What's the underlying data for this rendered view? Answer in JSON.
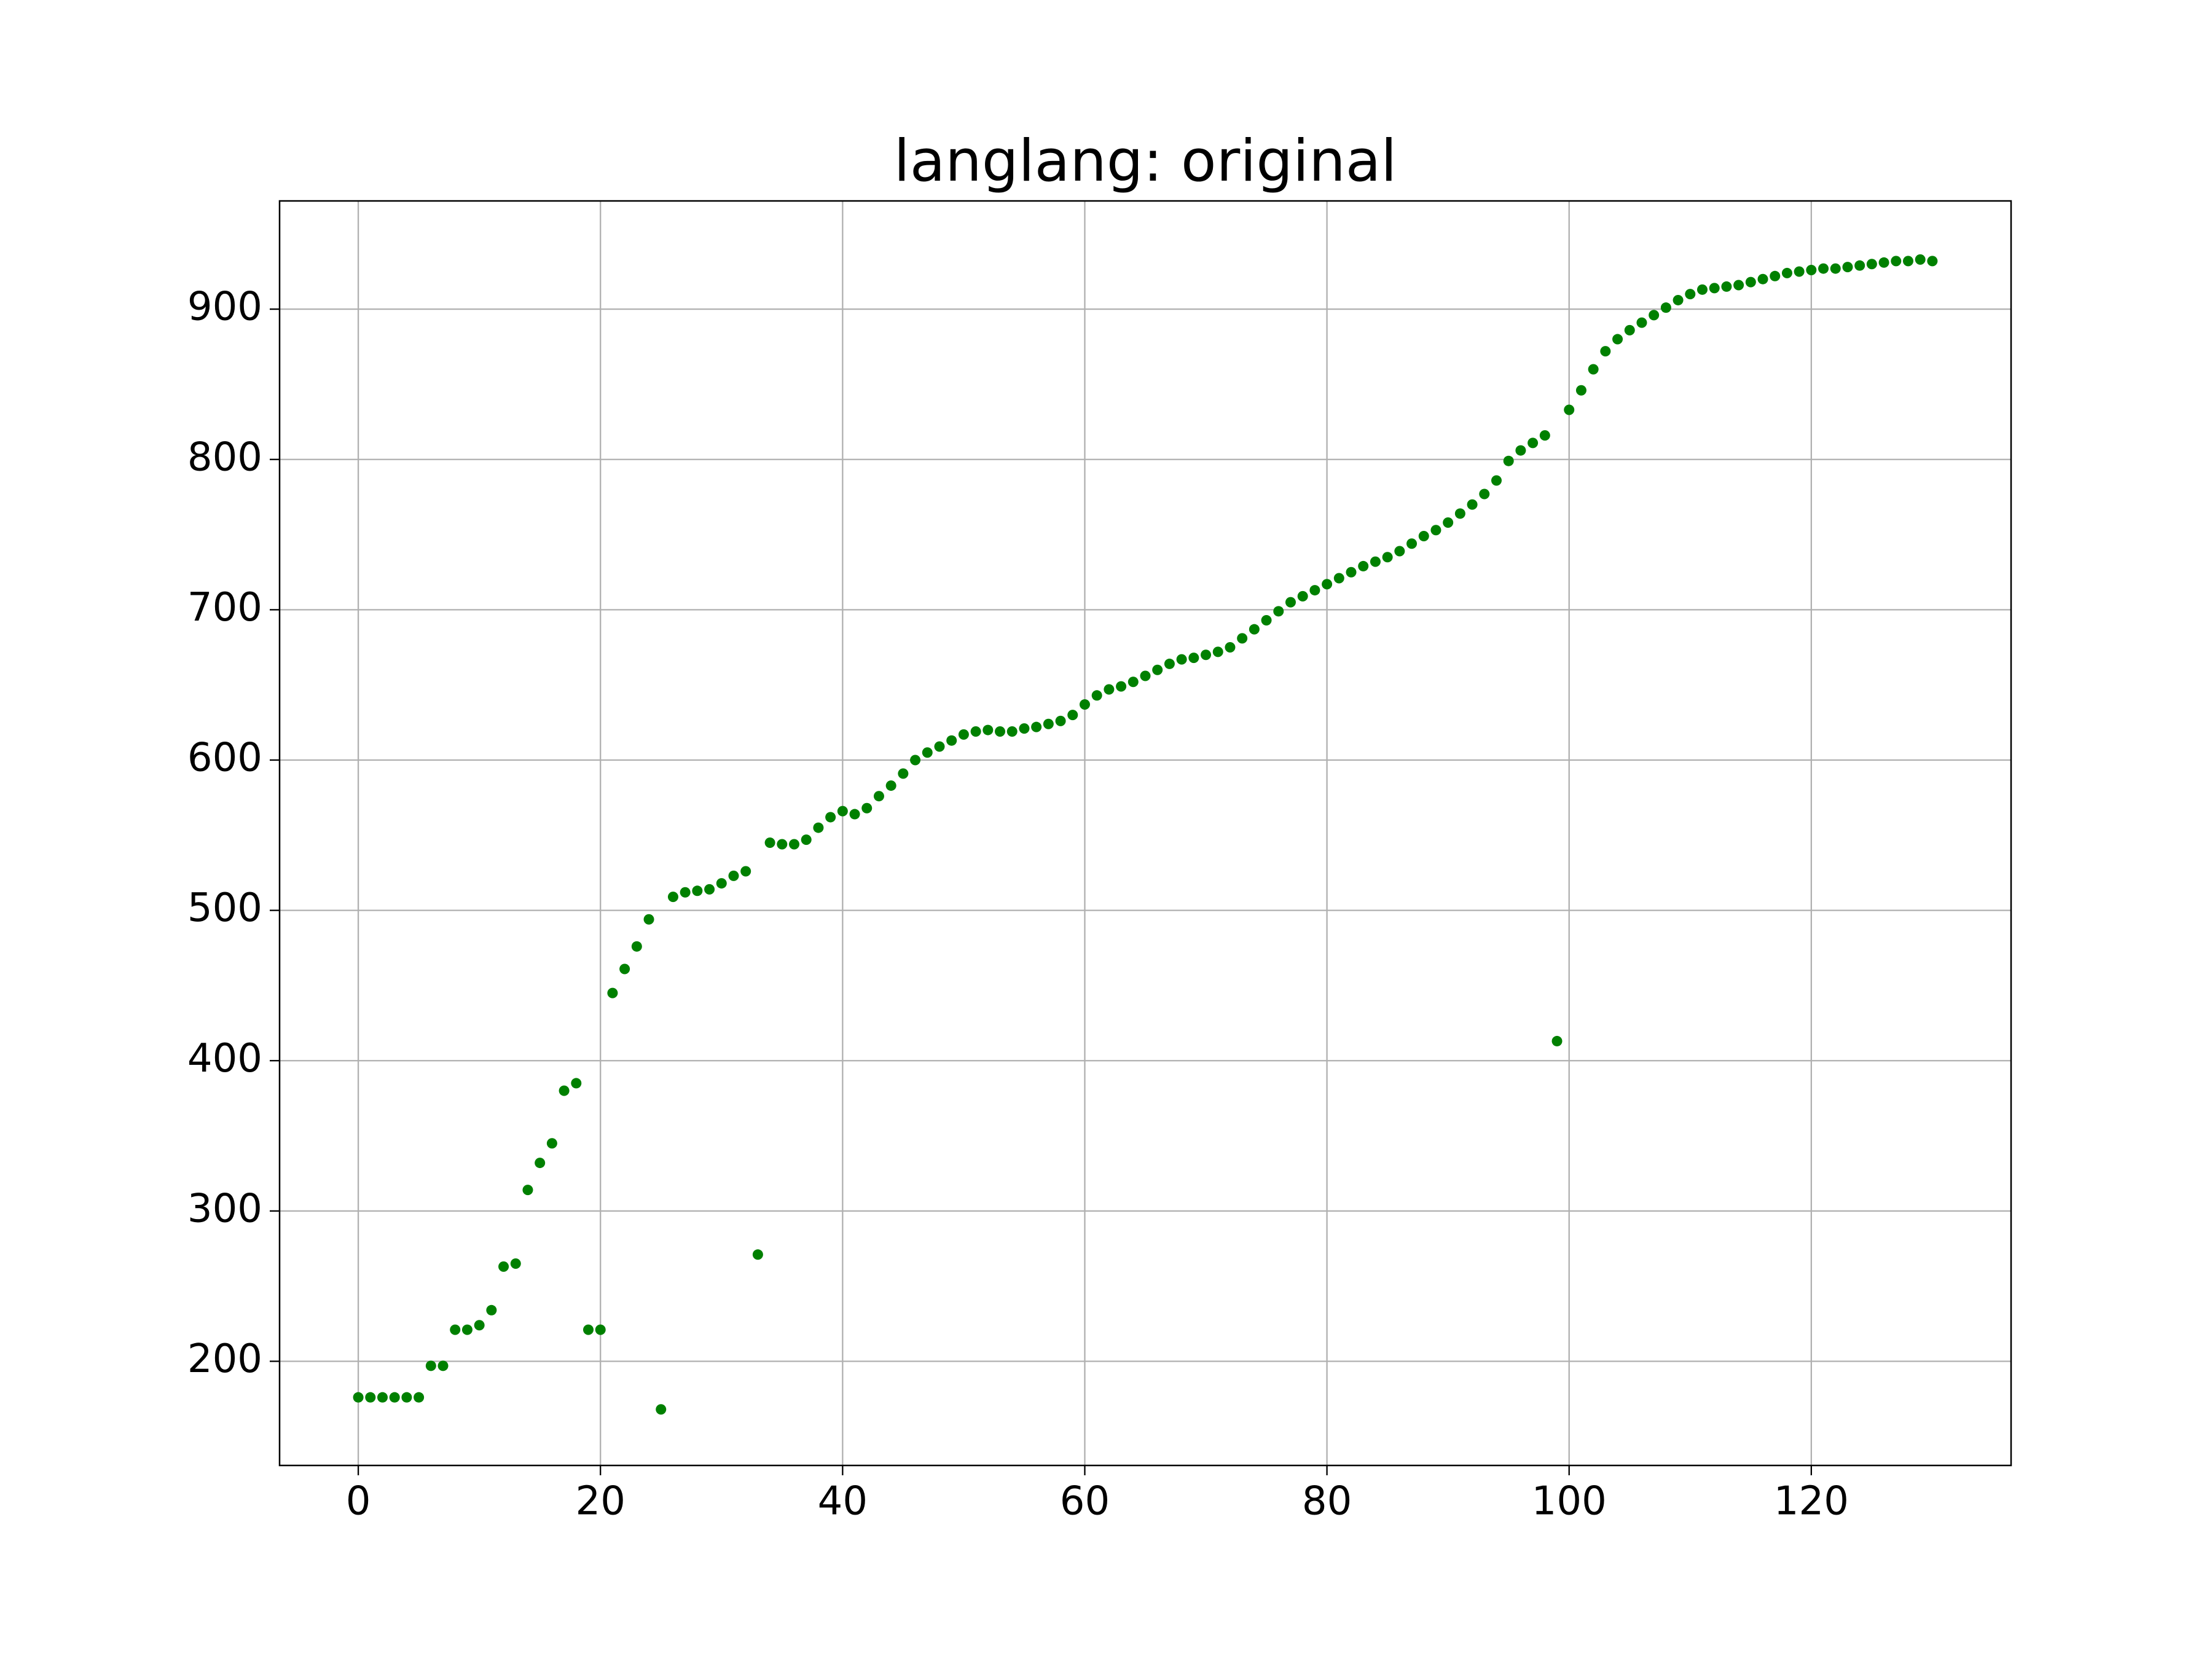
{
  "chart_data": {
    "type": "scatter",
    "title": "langlang: original",
    "x": [
      0,
      1,
      2,
      3,
      4,
      5,
      6,
      7,
      8,
      9,
      10,
      11,
      12,
      13,
      14,
      15,
      16,
      17,
      18,
      19,
      20,
      21,
      22,
      23,
      24,
      25,
      26,
      27,
      28,
      29,
      30,
      31,
      32,
      33,
      34,
      35,
      36,
      37,
      38,
      39,
      40,
      41,
      42,
      43,
      44,
      45,
      46,
      47,
      48,
      49,
      50,
      51,
      52,
      53,
      54,
      55,
      56,
      57,
      58,
      59,
      60,
      61,
      62,
      63,
      64,
      65,
      66,
      67,
      68,
      69,
      70,
      71,
      72,
      73,
      74,
      75,
      76,
      77,
      78,
      79,
      80,
      81,
      82,
      83,
      84,
      85,
      86,
      87,
      88,
      89,
      90,
      91,
      92,
      93,
      94,
      95,
      96,
      97,
      98,
      99,
      100,
      101,
      102,
      103,
      104,
      105,
      106,
      107,
      108,
      109,
      110,
      111,
      112,
      113,
      114,
      115,
      116,
      117,
      118,
      119,
      120,
      121,
      122,
      123,
      124,
      125,
      126,
      127,
      128,
      129,
      130
    ],
    "values": [
      176,
      176,
      176,
      176,
      176,
      176,
      197,
      197,
      221,
      221,
      224,
      234,
      263,
      265,
      314,
      332,
      345,
      380,
      385,
      221,
      221,
      445,
      461,
      476,
      494,
      168,
      509,
      512,
      513,
      514,
      518,
      523,
      526,
      271,
      545,
      544,
      544,
      547,
      555,
      562,
      566,
      564,
      568,
      576,
      583,
      591,
      600,
      605,
      609,
      613,
      617,
      619,
      620,
      619,
      619,
      621,
      622,
      624,
      626,
      630,
      637,
      643,
      647,
      649,
      652,
      656,
      660,
      664,
      667,
      668,
      670,
      672,
      675,
      681,
      687,
      693,
      699,
      705,
      709,
      713,
      717,
      721,
      725,
      729,
      732,
      735,
      739,
      744,
      749,
      753,
      758,
      764,
      770,
      777,
      786,
      799,
      806,
      811,
      816,
      413,
      833,
      846,
      860,
      872,
      880,
      886,
      891,
      896,
      901,
      906,
      910,
      913,
      914,
      915,
      916,
      918,
      920,
      922,
      924,
      925,
      926,
      927,
      927,
      928,
      929,
      930,
      931,
      932,
      932,
      933,
      932
    ],
    "color": "#008000",
    "xlim": [
      -6.5,
      136.5
    ],
    "ylim": [
      130.7,
      972
    ],
    "xticks": [
      0,
      20,
      40,
      60,
      80,
      100,
      120
    ],
    "yticks": [
      200,
      300,
      400,
      500,
      600,
      700,
      800,
      900
    ],
    "grid": true
  }
}
